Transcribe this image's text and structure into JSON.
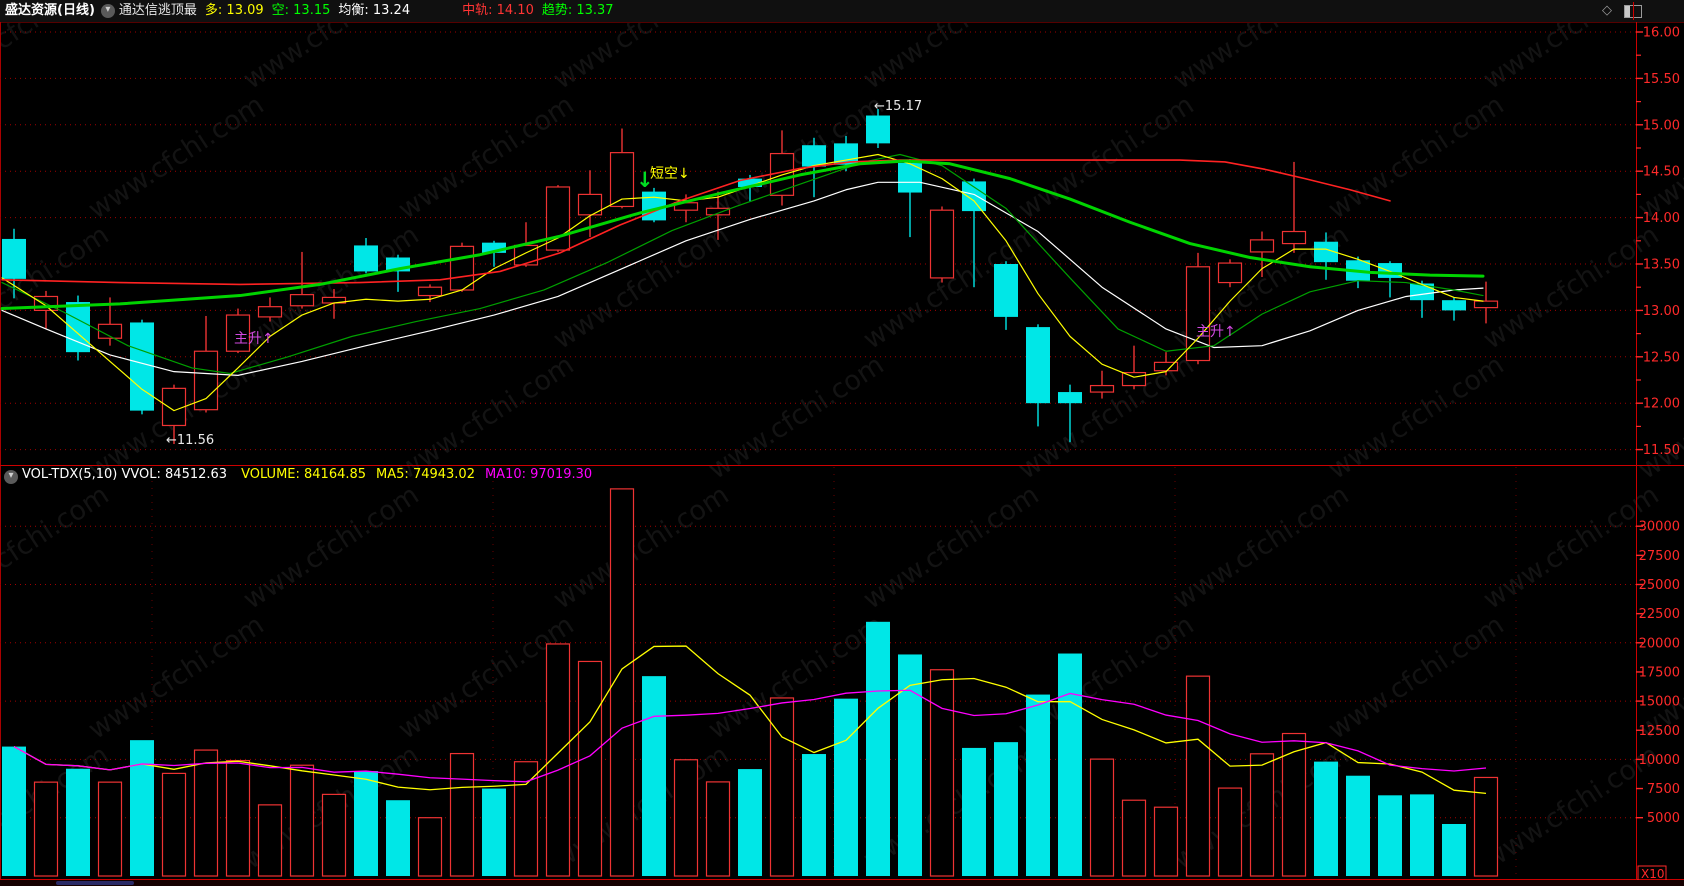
{
  "topbar": {
    "stock": "盛达资源(日线)",
    "indicator": "通达信逃顶最",
    "duo": "多: 13.09",
    "kong": "空: 13.15",
    "junheng": "均衡: 13.24",
    "zhonggui": "中轨: 14.10",
    "qushi": "趋势: 13.37",
    "chevron": "▾",
    "diamond": "◇"
  },
  "volume_header": {
    "name_vvol": "VOL-TDX(5,10) VVOL: 84512.63",
    "volume": "VOLUME: 84164.85",
    "ma5": "MA5: 74943.02",
    "ma10": "MA10: 97019.30",
    "chevron": "▾"
  },
  "annotations": {
    "high": "←15.17",
    "low": "←11.56",
    "short_signal": "短空↓",
    "short_arrow": "↓",
    "rally1": "主升↑",
    "rally2": "主升↑"
  },
  "watermark": "www.cfchi.com",
  "chart_data": {
    "type": "candlestick_with_volume",
    "title": "盛达资源 日线 通达信逃顶最",
    "colors": {
      "up": "#ee3333",
      "down": "#00e7e7",
      "axis": "#ff2a2a",
      "grid": "#a00000",
      "duo_line": "#ffff00",
      "kong_line": "#00a000",
      "junheng_line": "#ffffff",
      "zhonggui_line": "#ff2222",
      "qushi_line": "#00d400",
      "vol_ma5": "#ffff00",
      "vol_ma10": "#ff00ff"
    },
    "main_axis": {
      "labels": [
        "16.00",
        "15.50",
        "15.00",
        "14.50",
        "14.00",
        "13.50",
        "13.00",
        "12.50",
        "12.00",
        "11.50"
      ],
      "values": [
        16.0,
        15.5,
        15.0,
        14.5,
        14.0,
        13.5,
        13.0,
        12.5,
        12.0,
        11.5
      ],
      "minor_step": 0.25,
      "top_price": 16.0,
      "bottom_price": 11.5
    },
    "vol_axis": {
      "labels": [
        "30000",
        "27500",
        "25000",
        "22500",
        "20000",
        "17500",
        "15000",
        "12500",
        "10000",
        "7500",
        "5000"
      ],
      "values": [
        30000,
        27500,
        25000,
        22500,
        20000,
        17500,
        15000,
        12500,
        10000,
        7500,
        5000
      ],
      "grid_values": [
        30000,
        25000,
        20000,
        15000,
        10000,
        5000
      ],
      "multiplier_label": "X10"
    },
    "candles_format": [
      "open",
      "high",
      "low",
      "close",
      "volume_x10"
    ],
    "candles": [
      [
        13.77,
        13.88,
        13.13,
        13.34,
        11100
      ],
      [
        13.0,
        13.21,
        12.8,
        13.15,
        8050
      ],
      [
        13.09,
        13.16,
        12.46,
        12.55,
        9200
      ],
      [
        12.7,
        13.14,
        12.62,
        12.85,
        8050
      ],
      [
        12.87,
        12.9,
        11.88,
        11.92,
        11650
      ],
      [
        11.76,
        12.2,
        11.56,
        12.16,
        8800
      ],
      [
        11.93,
        12.94,
        11.9,
        12.56,
        10800
      ],
      [
        12.56,
        13.02,
        12.54,
        12.95,
        9900
      ],
      [
        12.93,
        13.14,
        12.88,
        13.04,
        6100
      ],
      [
        13.05,
        13.63,
        13.02,
        13.17,
        9500
      ],
      [
        13.08,
        13.23,
        12.91,
        13.14,
        7000
      ],
      [
        13.7,
        13.78,
        13.4,
        13.42,
        9000
      ],
      [
        13.57,
        13.6,
        13.2,
        13.42,
        6500
      ],
      [
        13.16,
        13.28,
        13.09,
        13.25,
        5000
      ],
      [
        13.22,
        13.73,
        13.2,
        13.69,
        10500
      ],
      [
        13.73,
        13.75,
        13.47,
        13.62,
        7500
      ],
      [
        13.49,
        13.95,
        13.47,
        13.7,
        9800
      ],
      [
        13.65,
        14.35,
        13.63,
        14.33,
        19900
      ],
      [
        14.03,
        14.51,
        13.79,
        14.25,
        18400
      ],
      [
        14.12,
        14.96,
        14.1,
        14.7,
        33200
      ],
      [
        14.28,
        14.32,
        13.95,
        13.97,
        17140
      ],
      [
        14.08,
        14.25,
        13.95,
        14.16,
        9970
      ],
      [
        14.03,
        14.28,
        13.76,
        14.1,
        8070
      ],
      [
        14.42,
        14.46,
        14.17,
        14.33,
        9170
      ],
      [
        14.24,
        14.94,
        14.13,
        14.69,
        15270
      ],
      [
        14.78,
        14.86,
        14.22,
        14.55,
        10460
      ],
      [
        14.8,
        14.88,
        14.5,
        14.57,
        15210
      ],
      [
        15.1,
        15.17,
        14.75,
        14.8,
        21800
      ],
      [
        14.59,
        14.63,
        13.79,
        14.27,
        19000
      ],
      [
        13.35,
        14.12,
        13.3,
        14.08,
        17690
      ],
      [
        14.39,
        14.42,
        13.25,
        14.07,
        10985
      ],
      [
        13.5,
        13.53,
        12.79,
        12.93,
        11480
      ],
      [
        12.82,
        12.85,
        11.75,
        12.0,
        15560
      ],
      [
        12.12,
        12.2,
        11.58,
        12.0,
        19080
      ],
      [
        12.12,
        12.35,
        12.05,
        12.19,
        10025
      ],
      [
        12.19,
        12.62,
        12.15,
        12.33,
        6500
      ],
      [
        12.35,
        12.55,
        12.3,
        12.44,
        5900
      ],
      [
        12.46,
        13.62,
        12.42,
        13.47,
        17140
      ],
      [
        13.3,
        13.55,
        13.25,
        13.51,
        7540
      ],
      [
        13.63,
        13.85,
        13.36,
        13.76,
        10480
      ],
      [
        13.72,
        14.6,
        13.62,
        13.85,
        12220
      ],
      [
        13.74,
        13.84,
        13.33,
        13.52,
        9810
      ],
      [
        13.54,
        13.58,
        13.24,
        13.32,
        8600
      ],
      [
        13.51,
        13.53,
        13.14,
        13.35,
        6920
      ],
      [
        13.29,
        13.32,
        12.92,
        13.11,
        7000
      ],
      [
        13.11,
        13.14,
        12.89,
        13.0,
        4460
      ],
      [
        13.03,
        13.31,
        12.86,
        13.1,
        8451
      ]
    ],
    "lines": {
      "junheng": {
        "name": "均衡",
        "color": "#ffffff",
        "width": 1.2,
        "points": [
          [
            2,
            13.0
          ],
          [
            46,
            12.8
          ],
          [
            110,
            12.52
          ],
          [
            174,
            12.34
          ],
          [
            238,
            12.3
          ],
          [
            302,
            12.45
          ],
          [
            366,
            12.62
          ],
          [
            430,
            12.78
          ],
          [
            494,
            12.95
          ],
          [
            558,
            13.15
          ],
          [
            622,
            13.45
          ],
          [
            686,
            13.75
          ],
          [
            750,
            13.98
          ],
          [
            814,
            14.18
          ],
          [
            846,
            14.3
          ],
          [
            878,
            14.38
          ],
          [
            920,
            14.38
          ],
          [
            974,
            14.25
          ],
          [
            1038,
            13.85
          ],
          [
            1102,
            13.25
          ],
          [
            1166,
            12.8
          ],
          [
            1214,
            12.6
          ],
          [
            1262,
            12.62
          ],
          [
            1310,
            12.78
          ],
          [
            1358,
            13.0
          ],
          [
            1406,
            13.15
          ],
          [
            1454,
            13.22
          ],
          [
            1483,
            13.24
          ]
        ]
      },
      "kong": {
        "name": "空",
        "color": "#00a000",
        "width": 1.2,
        "points": [
          [
            2,
            13.3
          ],
          [
            64,
            12.98
          ],
          [
            128,
            12.62
          ],
          [
            192,
            12.38
          ],
          [
            230,
            12.32
          ],
          [
            288,
            12.5
          ],
          [
            352,
            12.72
          ],
          [
            416,
            12.88
          ],
          [
            480,
            13.02
          ],
          [
            544,
            13.22
          ],
          [
            608,
            13.52
          ],
          [
            672,
            13.86
          ],
          [
            736,
            14.12
          ],
          [
            800,
            14.36
          ],
          [
            864,
            14.6
          ],
          [
            900,
            14.68
          ],
          [
            942,
            14.56
          ],
          [
            1006,
            14.1
          ],
          [
            1070,
            13.35
          ],
          [
            1118,
            12.8
          ],
          [
            1166,
            12.56
          ],
          [
            1214,
            12.62
          ],
          [
            1262,
            12.96
          ],
          [
            1310,
            13.2
          ],
          [
            1358,
            13.32
          ],
          [
            1406,
            13.3
          ],
          [
            1454,
            13.22
          ],
          [
            1483,
            13.16
          ]
        ]
      },
      "duo": {
        "name": "多",
        "color": "#ffff00",
        "width": 1.2,
        "points": [
          [
            2,
            13.35
          ],
          [
            46,
            13.05
          ],
          [
            78,
            12.75
          ],
          [
            110,
            12.45
          ],
          [
            142,
            12.15
          ],
          [
            174,
            11.92
          ],
          [
            206,
            12.05
          ],
          [
            238,
            12.38
          ],
          [
            270,
            12.72
          ],
          [
            302,
            12.95
          ],
          [
            334,
            13.08
          ],
          [
            366,
            13.12
          ],
          [
            398,
            13.1
          ],
          [
            430,
            13.12
          ],
          [
            462,
            13.22
          ],
          [
            494,
            13.45
          ],
          [
            526,
            13.62
          ],
          [
            558,
            13.78
          ],
          [
            590,
            14.02
          ],
          [
            622,
            14.2
          ],
          [
            654,
            14.22
          ],
          [
            686,
            14.18
          ],
          [
            718,
            14.22
          ],
          [
            750,
            14.34
          ],
          [
            782,
            14.46
          ],
          [
            814,
            14.56
          ],
          [
            846,
            14.62
          ],
          [
            878,
            14.68
          ],
          [
            910,
            14.58
          ],
          [
            942,
            14.42
          ],
          [
            974,
            14.18
          ],
          [
            1006,
            13.75
          ],
          [
            1038,
            13.18
          ],
          [
            1070,
            12.72
          ],
          [
            1102,
            12.42
          ],
          [
            1134,
            12.28
          ],
          [
            1166,
            12.34
          ],
          [
            1198,
            12.7
          ],
          [
            1230,
            13.1
          ],
          [
            1262,
            13.45
          ],
          [
            1294,
            13.66
          ],
          [
            1326,
            13.66
          ],
          [
            1358,
            13.55
          ],
          [
            1390,
            13.42
          ],
          [
            1422,
            13.28
          ],
          [
            1454,
            13.14
          ],
          [
            1483,
            13.1
          ]
        ]
      },
      "zhonggui": {
        "name": "中轨",
        "color": "#ff2222",
        "width": 1.6,
        "points": [
          [
            2,
            13.33
          ],
          [
            120,
            13.3
          ],
          [
            240,
            13.28
          ],
          [
            360,
            13.3
          ],
          [
            440,
            13.33
          ],
          [
            500,
            13.42
          ],
          [
            560,
            13.62
          ],
          [
            620,
            13.92
          ],
          [
            680,
            14.18
          ],
          [
            740,
            14.4
          ],
          [
            800,
            14.53
          ],
          [
            850,
            14.6
          ],
          [
            900,
            14.62
          ],
          [
            1000,
            14.62
          ],
          [
            1100,
            14.62
          ],
          [
            1180,
            14.62
          ],
          [
            1225,
            14.6
          ],
          [
            1265,
            14.52
          ],
          [
            1305,
            14.42
          ],
          [
            1350,
            14.3
          ],
          [
            1390,
            14.18
          ]
        ]
      },
      "qushi": {
        "name": "趋势",
        "color": "#00d400",
        "width": 3,
        "points": [
          [
            2,
            13.02
          ],
          [
            120,
            13.07
          ],
          [
            240,
            13.16
          ],
          [
            320,
            13.28
          ],
          [
            400,
            13.45
          ],
          [
            480,
            13.6
          ],
          [
            560,
            13.8
          ],
          [
            640,
            14.05
          ],
          [
            720,
            14.26
          ],
          [
            800,
            14.46
          ],
          [
            860,
            14.58
          ],
          [
            905,
            14.61
          ],
          [
            950,
            14.58
          ],
          [
            1010,
            14.42
          ],
          [
            1070,
            14.2
          ],
          [
            1130,
            13.95
          ],
          [
            1190,
            13.72
          ],
          [
            1250,
            13.57
          ],
          [
            1310,
            13.47
          ],
          [
            1370,
            13.41
          ],
          [
            1430,
            13.38
          ],
          [
            1483,
            13.37
          ]
        ]
      }
    },
    "vol_ma": {
      "ma5_window": 5,
      "ma10_window": 10
    }
  }
}
